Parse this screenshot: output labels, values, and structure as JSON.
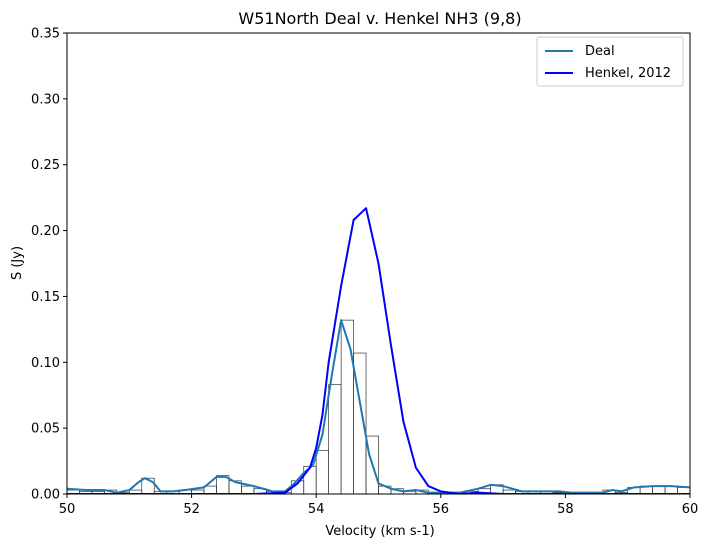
{
  "chart_data": {
    "type": "line",
    "title": "W51North Deal v. Henkel NH3 (9,8)",
    "xlabel": "Velocity (km s-1)",
    "ylabel": "S (Jy)",
    "xlim": [
      50,
      60
    ],
    "ylim": [
      0,
      0.35
    ],
    "x_ticks": [
      50,
      52,
      54,
      56,
      58,
      60
    ],
    "x_tick_labels": [
      "50",
      "52",
      "54",
      "56",
      "58",
      "60"
    ],
    "y_ticks": [
      0,
      0.05,
      0.1,
      0.15,
      0.2,
      0.25,
      0.3,
      0.35
    ],
    "y_tick_labels": [
      "0.00",
      "0.05",
      "0.10",
      "0.15",
      "0.20",
      "0.25",
      "0.30",
      "0.35"
    ],
    "grid": false,
    "legend_position": "top-right",
    "colors": {
      "deal": "#1f77b4",
      "henkel": "#0000ff",
      "steps": "#333333"
    },
    "series": [
      {
        "name": "Deal",
        "x": [
          50.0,
          50.3,
          50.6,
          50.8,
          51.0,
          51.15,
          51.25,
          51.38,
          51.5,
          51.7,
          51.9,
          52.2,
          52.4,
          52.55,
          52.7,
          53.0,
          53.3,
          53.5,
          53.65,
          53.8,
          53.95,
          54.1,
          54.25,
          54.4,
          54.55,
          54.7,
          54.85,
          55.0,
          55.2,
          55.4,
          55.6,
          55.8,
          56.0,
          56.3,
          56.6,
          56.8,
          57.0,
          57.3,
          57.6,
          57.9,
          58.1,
          58.4,
          58.6,
          58.75,
          58.9,
          59.1,
          59.4,
          59.7,
          60.0
        ],
        "y": [
          0.004,
          0.003,
          0.003,
          0.001,
          0.003,
          0.009,
          0.012,
          0.009,
          0.002,
          0.002,
          0.003,
          0.005,
          0.013,
          0.013,
          0.009,
          0.006,
          0.002,
          0.002,
          0.008,
          0.016,
          0.022,
          0.045,
          0.09,
          0.132,
          0.11,
          0.07,
          0.03,
          0.008,
          0.004,
          0.002,
          0.003,
          0.001,
          0.001,
          0.001,
          0.004,
          0.007,
          0.006,
          0.002,
          0.002,
          0.002,
          0.001,
          0.001,
          0.001,
          0.003,
          0.002,
          0.005,
          0.006,
          0.006,
          0.005
        ]
      },
      {
        "name": "Henkel, 2012",
        "x": [
          50.0,
          53.0,
          53.5,
          53.7,
          53.9,
          54.0,
          54.1,
          54.2,
          54.4,
          54.6,
          54.8,
          55.0,
          55.2,
          55.4,
          55.6,
          55.8,
          56.0,
          56.3,
          56.6,
          57.0,
          60.0
        ],
        "y": [
          0.0,
          0.0,
          0.001,
          0.008,
          0.02,
          0.035,
          0.06,
          0.1,
          0.158,
          0.208,
          0.217,
          0.175,
          0.113,
          0.055,
          0.02,
          0.006,
          0.002,
          0.0,
          0.001,
          0.0,
          0.0
        ]
      }
    ],
    "histogram_steps": {
      "bin_edges": [
        50.0,
        50.2,
        50.4,
        50.6,
        50.8,
        51.0,
        51.2,
        51.4,
        51.6,
        51.8,
        52.0,
        52.2,
        52.4,
        52.6,
        52.8,
        53.0,
        53.2,
        53.4,
        53.6,
        53.8,
        54.0,
        54.2,
        54.4,
        54.6,
        54.8,
        55.0,
        55.2,
        55.4,
        55.6,
        55.8,
        56.0,
        56.2,
        56.4,
        56.6,
        56.8,
        57.0,
        57.2,
        57.4,
        57.6,
        57.8,
        58.0,
        58.2,
        58.4,
        58.6,
        58.8,
        59.0,
        59.2,
        59.4,
        59.6,
        59.8,
        60.0
      ],
      "values": [
        0.003,
        0.002,
        0.002,
        0.003,
        0.001,
        0.003,
        0.012,
        0.002,
        0.002,
        0.003,
        0.003,
        0.006,
        0.014,
        0.01,
        0.006,
        0.004,
        0.002,
        0.001,
        0.01,
        0.021,
        0.033,
        0.083,
        0.132,
        0.107,
        0.044,
        0.006,
        0.004,
        0.002,
        0.003,
        0.001,
        0.001,
        0.001,
        0.002,
        0.004,
        0.007,
        0.003,
        0.002,
        0.002,
        0.002,
        0.001,
        0.001,
        0.001,
        0.001,
        0.003,
        0.001,
        0.005,
        0.006,
        0.006,
        0.006,
        0.005
      ]
    }
  }
}
